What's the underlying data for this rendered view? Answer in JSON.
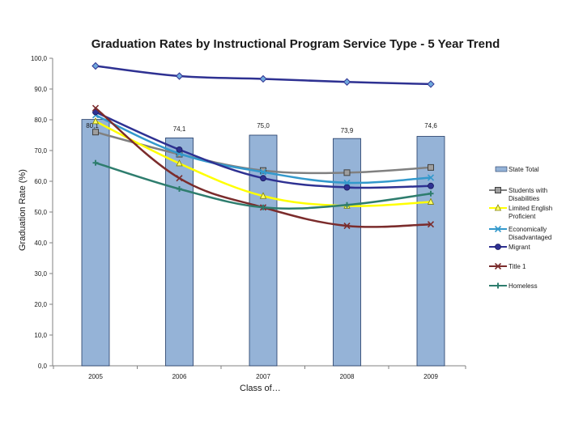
{
  "chart_data": {
    "type": "bar",
    "title": "Graduation Rates by Instructional Program Service Type - 5 Year Trend",
    "xlabel": "Class of…",
    "ylabel": "Graduation Rate (%)",
    "categories": [
      "2005",
      "2006",
      "2007",
      "2008",
      "2009"
    ],
    "ylim": [
      0,
      100
    ],
    "yticks": [
      "0,0",
      "10,0",
      "20,0",
      "30,0",
      "40,0",
      "50,0",
      "60,0",
      "70,0",
      "80,0",
      "90,0",
      "100,0"
    ],
    "grid": false,
    "legend_position": "right",
    "bar_series": {
      "name": "State Total",
      "values": [
        80.1,
        74.1,
        75.0,
        73.9,
        74.6
      ],
      "labels": [
        "80,1",
        "74,1",
        "75,0",
        "73,9",
        "74,6"
      ],
      "color": "#95b3d7",
      "stroke": "#1f3864"
    },
    "line_series": [
      {
        "name": "",
        "values": [
          97.5,
          94.2,
          93.3,
          92.3,
          91.6
        ],
        "color": "#2e3192",
        "marker": "diamond"
      },
      {
        "name": "Students with Disabilities",
        "values": [
          76.0,
          68.8,
          63.5,
          62.8,
          64.5
        ],
        "color": "#808080",
        "marker": "square"
      },
      {
        "name": "Limited English Proficient",
        "values": [
          79.5,
          65.8,
          55.2,
          52.0,
          53.3
        ],
        "color": "#ffff00",
        "marker": "triangle"
      },
      {
        "name": "Economically Disadvantaged",
        "values": [
          81.5,
          69.0,
          63.0,
          59.5,
          61.2
        ],
        "color": "#3399cc",
        "marker": "x"
      },
      {
        "name": "Migrant",
        "values": [
          82.5,
          70.3,
          61.0,
          58.0,
          58.5
        ],
        "color": "#2e3192",
        "marker": "star"
      },
      {
        "name": "Title 1",
        "values": [
          83.8,
          61.0,
          51.5,
          45.5,
          46.0
        ],
        "color": "#7b2c2c",
        "marker": "x"
      },
      {
        "name": "Homeless",
        "values": [
          66.0,
          57.5,
          51.5,
          52.3,
          56.0
        ],
        "color": "#2e7d6e",
        "marker": "plus"
      }
    ]
  }
}
